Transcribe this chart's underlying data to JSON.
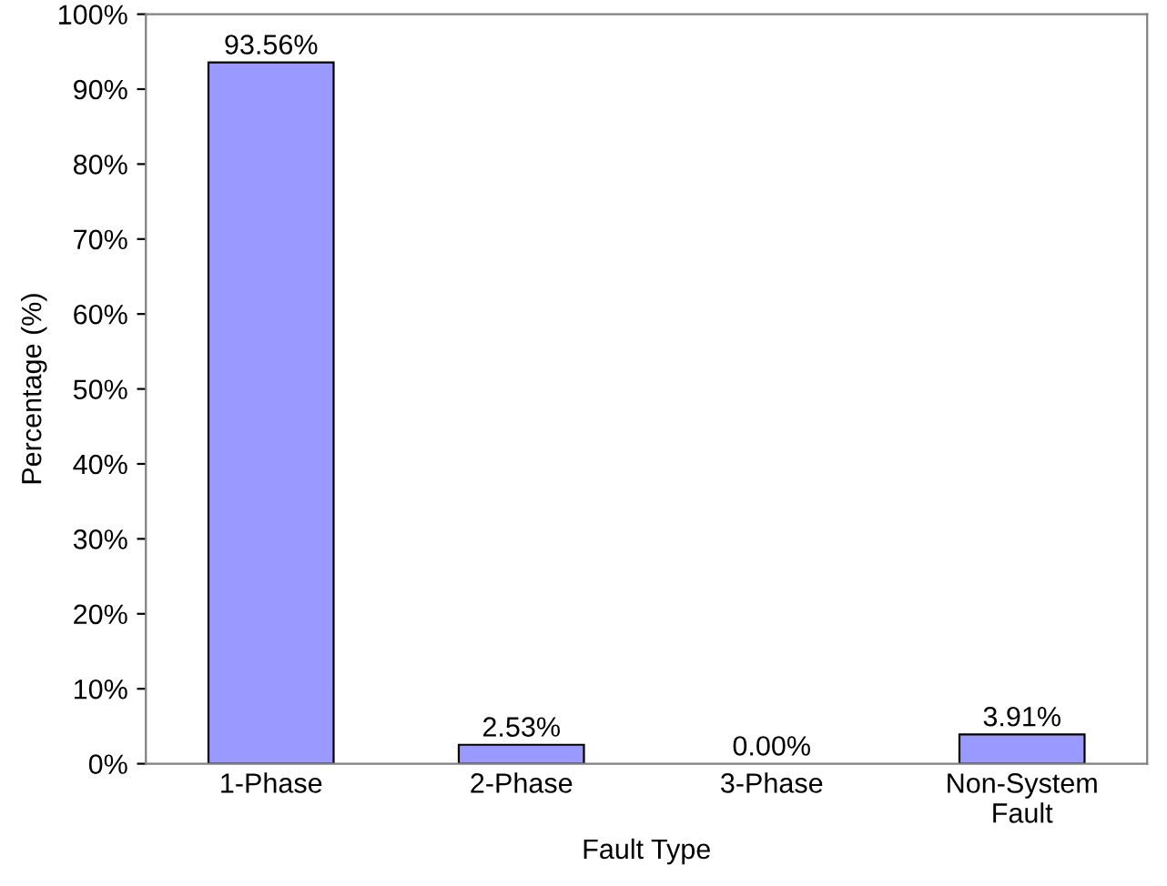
{
  "chart_data": {
    "type": "bar",
    "xlabel": "Fault Type",
    "ylabel": "Percentage (%)",
    "categories": [
      "1-Phase",
      "2-Phase",
      "3-Phase",
      "Non-System\nFault"
    ],
    "values": [
      93.56,
      2.53,
      0.0,
      3.91
    ],
    "value_labels": [
      "93.56%",
      "2.53%",
      "0.00%",
      "3.91%"
    ],
    "color": "#9999ff",
    "ylim": [
      0,
      100
    ],
    "yticks": [
      {
        "value": 0,
        "label": "0%"
      },
      {
        "value": 10,
        "label": "10%"
      },
      {
        "value": 20,
        "label": "20%"
      },
      {
        "value": 30,
        "label": "30%"
      },
      {
        "value": 40,
        "label": "40%"
      },
      {
        "value": 50,
        "label": "50%"
      },
      {
        "value": 60,
        "label": "60%"
      },
      {
        "value": 70,
        "label": "70%"
      },
      {
        "value": 80,
        "label": "80%"
      },
      {
        "value": 90,
        "label": "90%"
      },
      {
        "value": 100,
        "label": "100%"
      }
    ],
    "grid": false
  }
}
